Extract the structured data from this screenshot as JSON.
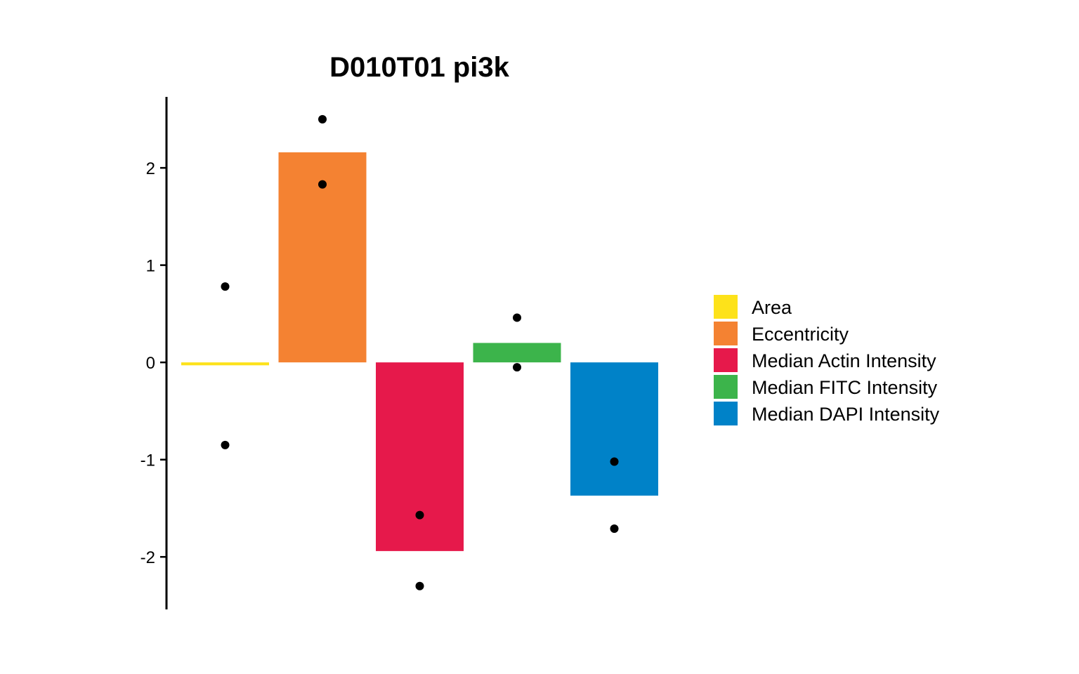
{
  "chart_data": {
    "type": "bar",
    "title": "D010T01 pi3k",
    "xlabel": "",
    "ylabel": "",
    "ylim": [
      -2.54,
      2.73
    ],
    "yticks": [
      -2,
      -1,
      0,
      1,
      2
    ],
    "ytick_labels": [
      "-2",
      "-1",
      "0",
      "1",
      "2"
    ],
    "grid": false,
    "legend_position": "right",
    "categories": [
      "Area",
      "Eccentricity",
      "Median Actin Intensity",
      "Median FITC Intensity",
      "Median DAPI Intensity"
    ],
    "colors": [
      "#FDE21A",
      "#F48232",
      "#E6194B",
      "#3CB44B",
      "#0082C8"
    ],
    "values": [
      -0.03,
      2.16,
      -1.94,
      0.2,
      -1.37
    ],
    "points": [
      [
        0.78,
        -0.85
      ],
      [
        2.5,
        1.83
      ],
      [
        -1.57,
        -2.3
      ],
      [
        0.46,
        -0.05
      ],
      [
        -1.02,
        -1.71
      ]
    ]
  }
}
